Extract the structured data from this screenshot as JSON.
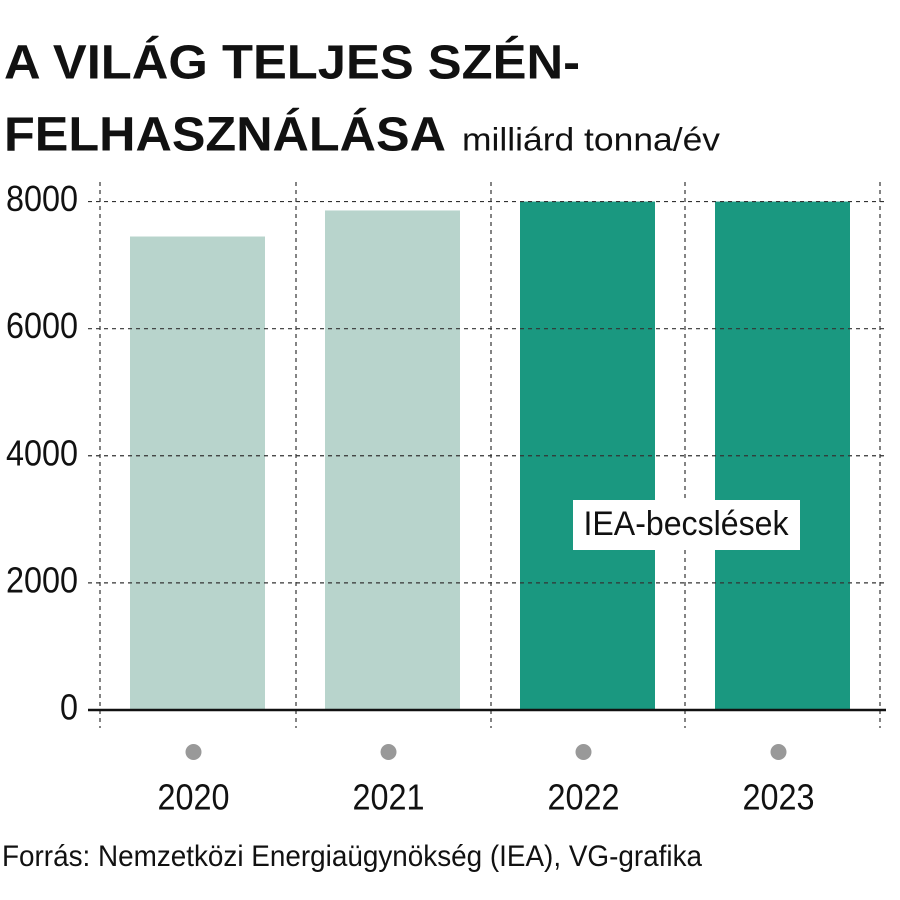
{
  "chart_data": {
    "type": "bar",
    "title": [
      "A VILÁG TELJES SZÉN-",
      "FELHASZNÁLÁSA"
    ],
    "subtitle": "milliárd tonna/év",
    "categories": [
      "2020",
      "2021",
      "2022",
      "2023"
    ],
    "values": [
      7450,
      7860,
      8000,
      8000
    ],
    "colors": [
      "#b8d4cc",
      "#b8d4cc",
      "#1a9880",
      "#1a9880"
    ],
    "ylim": [
      0,
      8300
    ],
    "yticks": [
      0,
      2000,
      4000,
      6000,
      8000
    ],
    "grid": true,
    "annotation": "IEA-becslések",
    "source": "Forrás: Nemzetközi Energiaügynökség (IEA), VG-grafika"
  }
}
